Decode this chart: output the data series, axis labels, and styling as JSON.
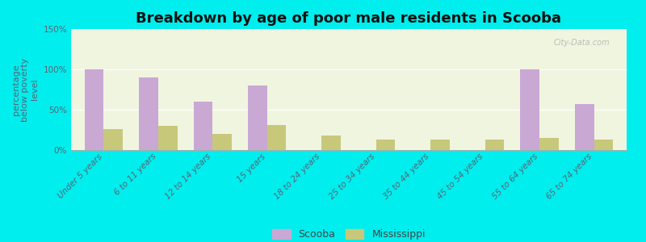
{
  "title": "Breakdown by age of poor male residents in Scooba",
  "ylabel": "percentage\nbelow poverty\nlevel",
  "categories": [
    "Under 5 years",
    "6 to 11 years",
    "12 to 14 years",
    "15 years",
    "18 to 24 years",
    "25 to 34 years",
    "35 to 44 years",
    "45 to 54 years",
    "55 to 64 years",
    "65 to 74 years"
  ],
  "scooba_values": [
    100,
    90,
    60,
    80,
    0,
    0,
    0,
    0,
    100,
    57
  ],
  "mississippi_values": [
    26,
    30,
    20,
    31,
    18,
    13,
    13,
    13,
    15,
    13
  ],
  "scooba_color": "#c9a8d4",
  "mississippi_color": "#c8c87a",
  "ylim": [
    0,
    150
  ],
  "yticks": [
    0,
    50,
    100,
    150
  ],
  "ytick_labels": [
    "0%",
    "50%",
    "100%",
    "150%"
  ],
  "background_color": "#00eeee",
  "title_fontsize": 13,
  "axis_label_fontsize": 8,
  "tick_label_fontsize": 7.5,
  "legend_fontsize": 9,
  "bar_width": 0.35,
  "watermark": "City-Data.com"
}
